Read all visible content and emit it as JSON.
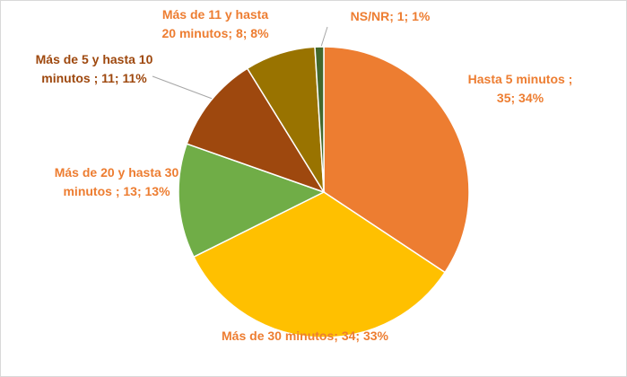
{
  "chart_data": {
    "type": "pie",
    "categories": [
      "Hasta 5 minutos",
      "Más de 30 minutos",
      "Más de 20 y hasta 30 minutos",
      "Más de 5 y hasta 10 minutos",
      "Más de 11 y hasta 20 minutos",
      "NS/NR"
    ],
    "values": [
      35,
      34,
      13,
      11,
      8,
      1
    ],
    "value_labels": [
      "Hasta 5 minutos ; 35; 34%",
      "Más de 30 minutos; 34; 33%",
      "Más de 20 y hasta 30 minutos ; 13; 13%",
      "Más de 5 y hasta 10 minutos ; 11; 11%",
      "Más de 11 y hasta 20 minutos; 8; 8%",
      "NS/NR; 1; 1%"
    ],
    "colors": [
      "#ED7D31",
      "#FFC000",
      "#70AD47",
      "#9E480E",
      "#997300",
      "#43682B"
    ],
    "label_colors": [
      "#ED7D31",
      "#ED7D31",
      "#ED7D31",
      "#9E480E",
      "#ED7D31",
      "#ED7D31"
    ]
  }
}
